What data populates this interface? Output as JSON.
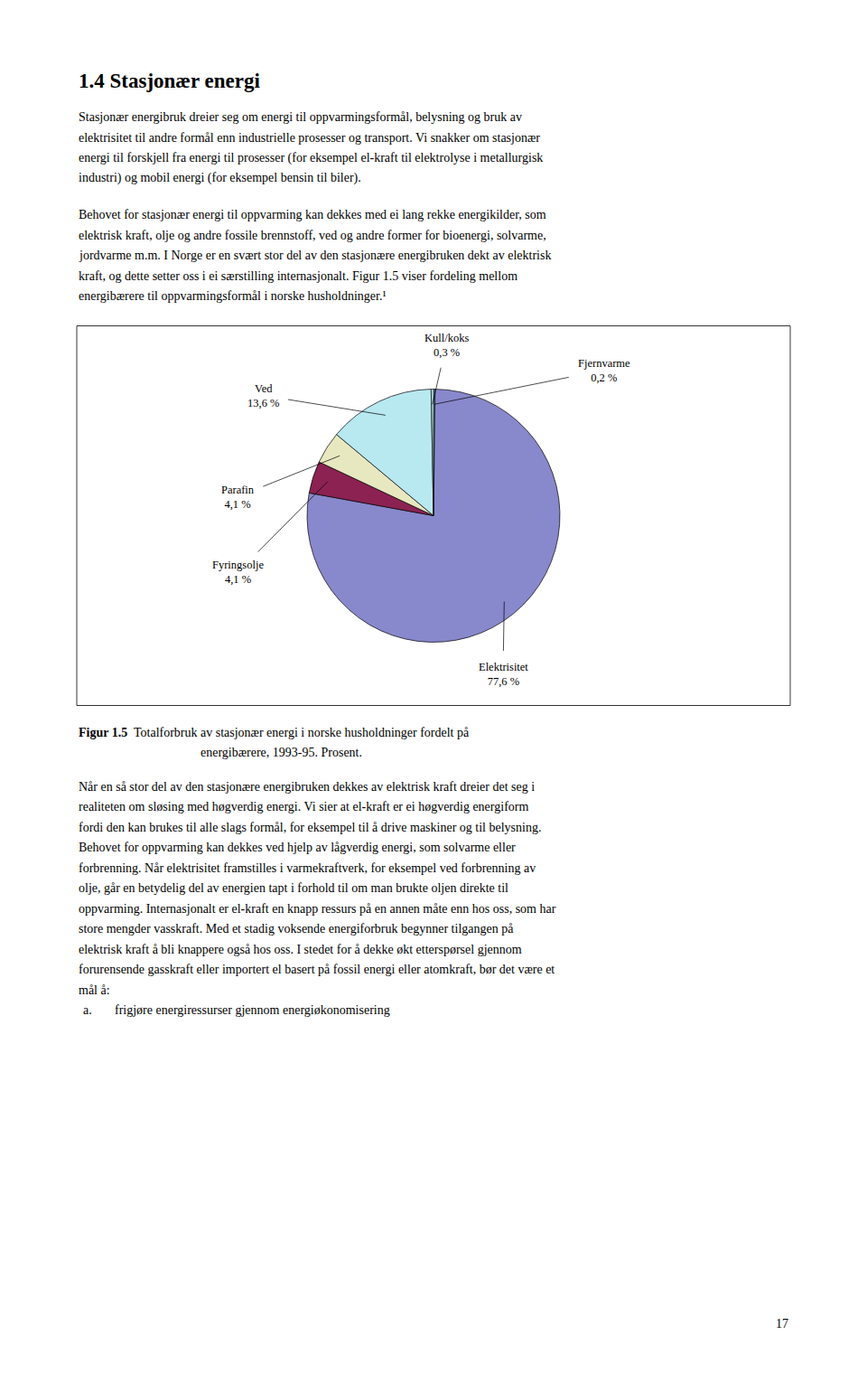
{
  "chart_data": {
    "type": "pie",
    "title": "Figur 1.5  Totalforbruk av stasjonær energi i norske husholdninger fordelt på\nenergibærere, 1993-95. Prosent.",
    "categories": [
      "Fjernvarme",
      "Elektrisitet",
      "Fyringsolje",
      "Parafin",
      "Ved",
      "Kull/koks"
    ],
    "values": [
      0.2,
      77.6,
      4.1,
      4.1,
      13.6,
      0.3
    ],
    "value_labels": [
      "0,2 %",
      "77,6 %",
      "4,1 %",
      "4,1 %",
      "13,6 %",
      "0,3 %"
    ],
    "colors": [
      "#b8e8f0",
      "#8888cc",
      "#8b2252",
      "#e8e8c0",
      "#b8e8f0",
      "#b8e8f0"
    ],
    "data_labels": true,
    "annotations": [
      [
        "1.4 Stasjonær energi"
      ],
      [
        "Stasjonær energibruk dreier seg om energi til oppvarmingsformål, belysning og bruk av",
        "elektrisitet til andre formål enn industrielle prosesser og transport. Vi snakker om stasjonær",
        "energi til forskjell fra energi til prosesser (for eksempel el-kraft til elektrolyse i metallurgisk",
        "industri) og mobil energi (for eksempel bensin til biler)."
      ],
      [
        "Behovet for stasjonær energi til oppvarming kan dekkes med ei lang rekke energikilder, som",
        "elektrisk kraft, olje og andre fossile brennstoff, ved og andre former for bioenergi, solvarme,",
        "jordvarme m.m. I Norge er en svært stor del av den stasjonære energibruken dekt av elektrisk",
        "kraft, og dette setter oss i ei særstilling internasjonalt. Figur 1.5 viser fordeling mellom",
        "energibærere til oppvarmingsformål i norske husholdninger.¹"
      ],
      [
        "Når en så stor del av den stasjonære energibruken dekkes av elektrisk kraft dreier det seg i",
        "realiteten om sløsing med høgverdig energi. Vi sier at el-kraft er ei høgverdig energiform",
        "fordi den kan brukes til alle slags formål, for eksempel til å drive maskiner og til belysning.",
        "Behovet for oppvarming kan dekkes ved hjelp av lågverdig energi, som solvarme eller",
        "forbrenning. Når elektrisitet framstilles i varmekraftverk, for eksempel ved forbrenning av",
        "olje, går en betydelig del av energien tapt i forhold til om man brukte oljen direkte til",
        "oppvarming. Internasjonalt er el-kraft en knapp ressurs på en annen måte enn hos oss, som har",
        "store mengder vasskraft. Med et stadig voksende energiforbruk begynner tilgangen på",
        "elektrisk kraft å bli knappere også hos oss. I stedet for å dekke økt etterspørsel gjennom",
        "forurensende gasskraft eller importert el basert på fossil energi eller atomkraft, bør det være et",
        "mål å:"
      ],
      [
        "a.",
        "frigjøre energiressurser gjennom energiøkonomisering"
      ],
      [
        "17"
      ]
    ]
  }
}
